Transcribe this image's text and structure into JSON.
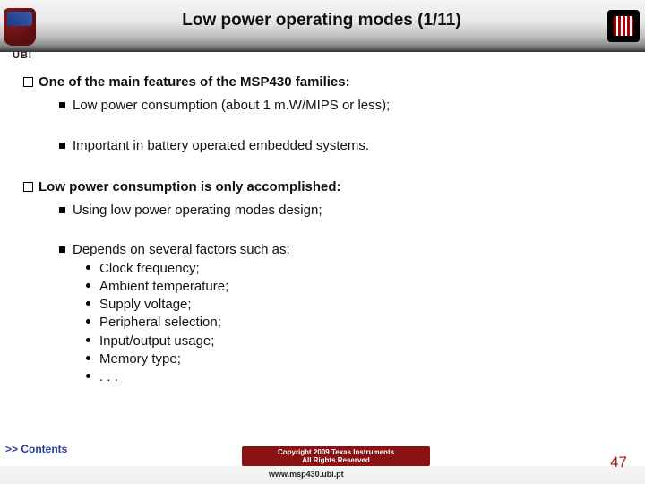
{
  "header": {
    "title": "Low power operating modes (1/11)",
    "ubi_tag": "UBI"
  },
  "content": {
    "block1": {
      "heading": "One of the main features of the MSP430 families:",
      "sub1": "Low power consumption (about 1 m.W/MIPS or less);",
      "sub2": "Important in battery operated embedded systems."
    },
    "block2": {
      "heading": "Low power consumption is only accomplished:",
      "sub1": "Using low power operating modes design;",
      "sub2_lead": "Depends on several factors such as:",
      "factors": {
        "f0": "Clock frequency;",
        "f1": "Ambient temperature;",
        "f2": "Supply voltage;",
        "f3": "Peripheral selection;",
        "f4": "Input/output usage;",
        "f5": "Memory type;",
        "f6": ". . ."
      }
    }
  },
  "footer": {
    "contents_link": ">> Contents",
    "copyright_line1": "Copyright  2009 Texas Instruments",
    "copyright_line2": "All Rights Reserved",
    "url": "www.msp430.ubi.pt",
    "slide_num": "47"
  }
}
